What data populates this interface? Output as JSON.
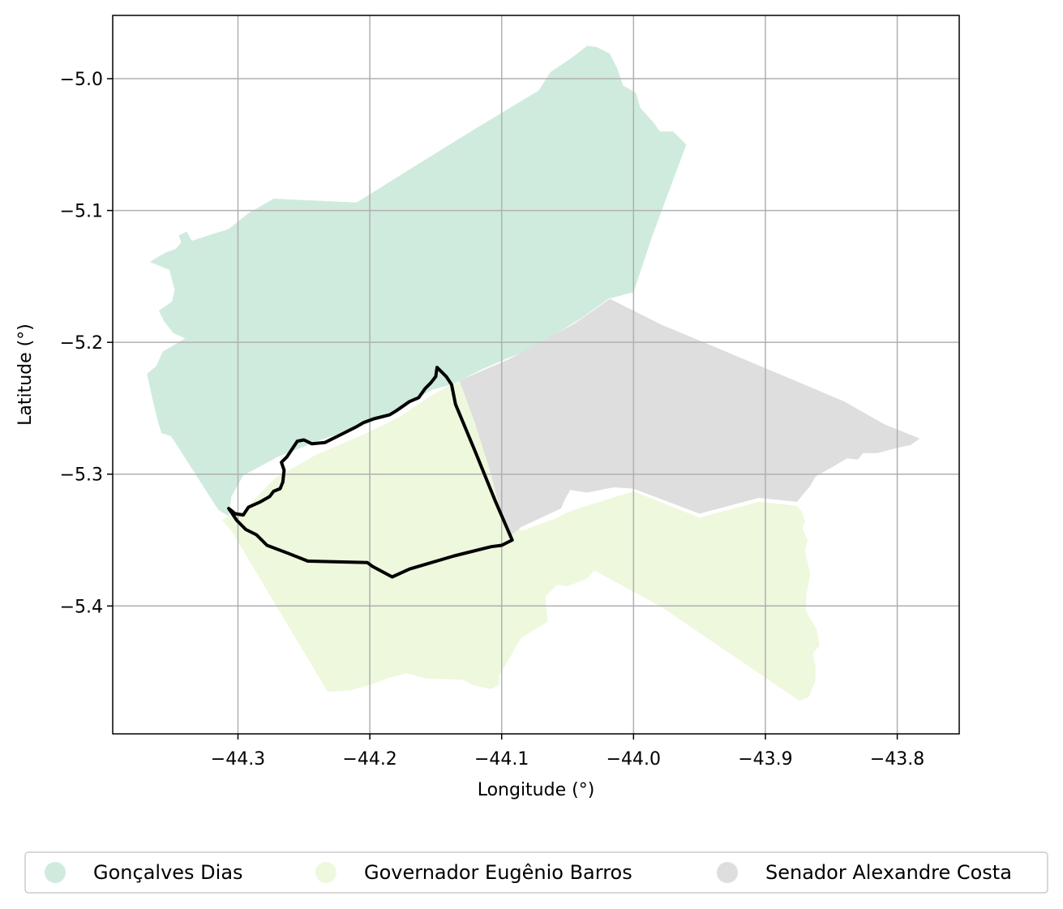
{
  "axes": {
    "xlabel": "Longitude (°)",
    "ylabel": "Latitude (°)",
    "xlim": [
      -44.395,
      -43.753
    ],
    "ylim": [
      -5.497,
      -4.952
    ],
    "grid": true
  },
  "chart_data": {
    "type": "map",
    "x_ticks": [
      {
        "value": -44.3,
        "label": "−44.3"
      },
      {
        "value": -44.2,
        "label": "−44.2"
      },
      {
        "value": -44.1,
        "label": "−44.1"
      },
      {
        "value": -44.0,
        "label": "−44.0"
      },
      {
        "value": -43.9,
        "label": "−43.9"
      },
      {
        "value": -43.8,
        "label": "−43.8"
      }
    ],
    "y_ticks": [
      {
        "value": -5.0,
        "label": "−5.0"
      },
      {
        "value": -5.1,
        "label": "−5.1"
      },
      {
        "value": -5.2,
        "label": "−5.2"
      },
      {
        "value": -5.3,
        "label": "−5.3"
      },
      {
        "value": -5.4,
        "label": "−5.4"
      }
    ],
    "legend_placement": "bottom-center",
    "regions": [
      {
        "name": "Gonçalves Dias",
        "color": "#cfebdd",
        "boundary": [
          [
            -44.367,
            -5.139
          ],
          [
            -44.355,
            -5.132
          ],
          [
            -44.347,
            -5.129
          ],
          [
            -44.343,
            -5.124
          ],
          [
            -44.345,
            -5.119
          ],
          [
            -44.339,
            -5.116
          ],
          [
            -44.335,
            -5.123
          ],
          [
            -44.329,
            -5.121
          ],
          [
            -44.307,
            -5.114
          ],
          [
            -44.292,
            -5.102
          ],
          [
            -44.273,
            -5.091
          ],
          [
            -44.21,
            -5.094
          ],
          [
            -44.175,
            -5.072
          ],
          [
            -44.12,
            -5.038
          ],
          [
            -44.072,
            -5.009
          ],
          [
            -44.063,
            -4.995
          ],
          [
            -44.048,
            -4.985
          ],
          [
            -44.035,
            -4.975
          ],
          [
            -44.028,
            -4.976
          ],
          [
            -44.018,
            -4.981
          ],
          [
            -44.012,
            -4.993
          ],
          [
            -44.008,
            -5.005
          ],
          [
            -43.998,
            -5.011
          ],
          [
            -43.995,
            -5.022
          ],
          [
            -43.985,
            -5.033
          ],
          [
            -43.98,
            -5.04
          ],
          [
            -43.97,
            -5.04
          ],
          [
            -43.96,
            -5.05
          ],
          [
            -43.986,
            -5.12
          ],
          [
            -44.0,
            -5.162
          ],
          [
            -44.019,
            -5.167
          ],
          [
            -44.04,
            -5.182
          ],
          [
            -44.074,
            -5.203
          ],
          [
            -44.114,
            -5.22
          ],
          [
            -44.132,
            -5.229
          ],
          [
            -44.138,
            -5.232
          ],
          [
            -44.153,
            -5.236
          ],
          [
            -44.18,
            -5.252
          ],
          [
            -44.205,
            -5.263
          ],
          [
            -44.24,
            -5.275
          ],
          [
            -44.27,
            -5.287
          ],
          [
            -44.296,
            -5.301
          ],
          [
            -44.305,
            -5.317
          ],
          [
            -44.307,
            -5.332
          ],
          [
            -44.315,
            -5.327
          ],
          [
            -44.347,
            -5.277
          ],
          [
            -44.351,
            -5.271
          ],
          [
            -44.358,
            -5.269
          ],
          [
            -44.361,
            -5.259
          ],
          [
            -44.366,
            -5.238
          ],
          [
            -44.369,
            -5.224
          ],
          [
            -44.362,
            -5.218
          ],
          [
            -44.357,
            -5.207
          ],
          [
            -44.34,
            -5.197
          ],
          [
            -44.349,
            -5.193
          ],
          [
            -44.356,
            -5.184
          ],
          [
            -44.36,
            -5.176
          ],
          [
            -44.35,
            -5.169
          ],
          [
            -44.348,
            -5.16
          ],
          [
            -44.352,
            -5.145
          ]
        ]
      },
      {
        "name": "Governador Eugênio Barros",
        "color": "#edf8dd",
        "boundary": [
          [
            -44.307,
            -5.332
          ],
          [
            -44.296,
            -5.328
          ],
          [
            -44.272,
            -5.303
          ],
          [
            -44.24,
            -5.285
          ],
          [
            -44.205,
            -5.27
          ],
          [
            -44.178,
            -5.257
          ],
          [
            -44.153,
            -5.24
          ],
          [
            -44.138,
            -5.232
          ],
          [
            -44.132,
            -5.229
          ],
          [
            -44.12,
            -5.258
          ],
          [
            -44.108,
            -5.296
          ],
          [
            -44.1,
            -5.328
          ],
          [
            -44.085,
            -5.343
          ],
          [
            -44.06,
            -5.334
          ],
          [
            -44.048,
            -5.328
          ],
          [
            -44.0,
            -5.313
          ],
          [
            -43.95,
            -5.333
          ],
          [
            -43.905,
            -5.321
          ],
          [
            -43.876,
            -5.324
          ],
          [
            -43.872,
            -5.329
          ],
          [
            -43.87,
            -5.336
          ],
          [
            -43.872,
            -5.341
          ],
          [
            -43.868,
            -5.35
          ],
          [
            -43.87,
            -5.358
          ],
          [
            -43.866,
            -5.376
          ],
          [
            -43.869,
            -5.392
          ],
          [
            -43.869,
            -5.404
          ],
          [
            -43.861,
            -5.418
          ],
          [
            -43.859,
            -5.43
          ],
          [
            -43.864,
            -5.436
          ],
          [
            -43.862,
            -5.445
          ],
          [
            -43.862,
            -5.457
          ],
          [
            -43.865,
            -5.464
          ],
          [
            -43.867,
            -5.469
          ],
          [
            -43.874,
            -5.472
          ],
          [
            -43.98,
            -5.4
          ],
          [
            -44.03,
            -5.373
          ],
          [
            -44.035,
            -5.379
          ],
          [
            -44.05,
            -5.385
          ],
          [
            -44.058,
            -5.384
          ],
          [
            -44.067,
            -5.393
          ],
          [
            -44.065,
            -5.412
          ],
          [
            -44.085,
            -5.424
          ],
          [
            -44.095,
            -5.441
          ],
          [
            -44.102,
            -5.453
          ],
          [
            -44.102,
            -5.46
          ],
          [
            -44.108,
            -5.463
          ],
          [
            -44.122,
            -5.46
          ],
          [
            -44.13,
            -5.456
          ],
          [
            -44.157,
            -5.455
          ],
          [
            -44.172,
            -5.451
          ],
          [
            -44.187,
            -5.455
          ],
          [
            -44.197,
            -5.459
          ],
          [
            -44.215,
            -5.464
          ],
          [
            -44.232,
            -5.465
          ],
          [
            -44.305,
            -5.343
          ],
          [
            -44.312,
            -5.335
          ]
        ]
      },
      {
        "name": "Senador Alexandre Costa",
        "color": "#dedede",
        "boundary": [
          [
            -44.132,
            -5.229
          ],
          [
            -44.095,
            -5.213
          ],
          [
            -44.045,
            -5.186
          ],
          [
            -44.018,
            -5.167
          ],
          [
            -43.978,
            -5.187
          ],
          [
            -43.93,
            -5.207
          ],
          [
            -43.88,
            -5.228
          ],
          [
            -43.84,
            -5.245
          ],
          [
            -43.81,
            -5.262
          ],
          [
            -43.783,
            -5.273
          ],
          [
            -43.79,
            -5.278
          ],
          [
            -43.8,
            -5.28
          ],
          [
            -43.815,
            -5.284
          ],
          [
            -43.826,
            -5.284
          ],
          [
            -43.83,
            -5.289
          ],
          [
            -43.838,
            -5.288
          ],
          [
            -43.85,
            -5.295
          ],
          [
            -43.862,
            -5.302
          ],
          [
            -43.866,
            -5.309
          ],
          [
            -43.872,
            -5.316
          ],
          [
            -43.876,
            -5.321
          ],
          [
            -43.905,
            -5.318
          ],
          [
            -43.95,
            -5.33
          ],
          [
            -44.0,
            -5.311
          ],
          [
            -44.015,
            -5.31
          ],
          [
            -44.035,
            -5.314
          ],
          [
            -44.048,
            -5.312
          ],
          [
            -44.052,
            -5.319
          ],
          [
            -44.055,
            -5.326
          ],
          [
            -44.085,
            -5.34
          ],
          [
            -44.095,
            -5.348
          ],
          [
            -44.1,
            -5.332
          ],
          [
            -44.108,
            -5.3
          ],
          [
            -44.12,
            -5.262
          ]
        ]
      }
    ],
    "highlight_outline": {
      "color": "#000000",
      "boundary": [
        [
          -44.307,
          -5.326
        ],
        [
          -44.302,
          -5.33
        ],
        [
          -44.296,
          -5.331
        ],
        [
          -44.292,
          -5.325
        ],
        [
          -44.283,
          -5.321
        ],
        [
          -44.276,
          -5.317
        ],
        [
          -44.273,
          -5.313
        ],
        [
          -44.268,
          -5.311
        ],
        [
          -44.266,
          -5.306
        ],
        [
          -44.265,
          -5.297
        ],
        [
          -44.267,
          -5.291
        ],
        [
          -44.263,
          -5.287
        ],
        [
          -44.259,
          -5.281
        ],
        [
          -44.255,
          -5.275
        ],
        [
          -44.25,
          -5.274
        ],
        [
          -44.244,
          -5.277
        ],
        [
          -44.234,
          -5.276
        ],
        [
          -44.222,
          -5.27
        ],
        [
          -44.21,
          -5.264
        ],
        [
          -44.205,
          -5.261
        ],
        [
          -44.197,
          -5.258
        ],
        [
          -44.185,
          -5.255
        ],
        [
          -44.18,
          -5.252
        ],
        [
          -44.17,
          -5.245
        ],
        [
          -44.163,
          -5.242
        ],
        [
          -44.158,
          -5.235
        ],
        [
          -44.154,
          -5.231
        ],
        [
          -44.15,
          -5.226
        ],
        [
          -44.149,
          -5.219
        ],
        [
          -44.146,
          -5.222
        ],
        [
          -44.142,
          -5.226
        ],
        [
          -44.138,
          -5.232
        ],
        [
          -44.135,
          -5.247
        ],
        [
          -44.12,
          -5.283
        ],
        [
          -44.105,
          -5.32
        ],
        [
          -44.092,
          -5.35
        ],
        [
          -44.1,
          -5.354
        ],
        [
          -44.108,
          -5.355
        ],
        [
          -44.136,
          -5.362
        ],
        [
          -44.17,
          -5.372
        ],
        [
          -44.183,
          -5.378
        ],
        [
          -44.198,
          -5.37
        ],
        [
          -44.202,
          -5.367
        ],
        [
          -44.247,
          -5.366
        ],
        [
          -44.262,
          -5.36
        ],
        [
          -44.278,
          -5.354
        ],
        [
          -44.286,
          -5.346
        ],
        [
          -44.294,
          -5.342
        ],
        [
          -44.301,
          -5.335
        ]
      ]
    }
  }
}
